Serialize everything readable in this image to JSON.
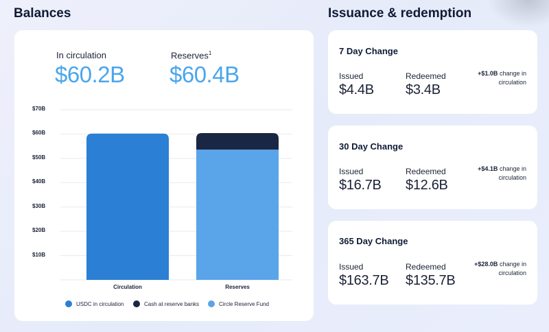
{
  "balances": {
    "title": "Balances",
    "in_circulation_label": "In circulation",
    "in_circulation_value": "$60.2B",
    "reserves_label": "Reserves",
    "reserves_footnote": "1",
    "reserves_value": "$60.4B"
  },
  "chart_data": {
    "type": "bar",
    "stacked": true,
    "categories": [
      "Circulation",
      "Reserves"
    ],
    "series": [
      {
        "name": "USDC in circulation",
        "color": "#2b7fd4",
        "values": [
          60.2,
          0
        ]
      },
      {
        "name": "Circle Reserve Fund",
        "color": "#5aa4ea",
        "values": [
          0,
          53.6
        ]
      },
      {
        "name": "Cash at reserve banks",
        "color": "#1a2744",
        "values": [
          0,
          6.8
        ]
      }
    ],
    "legend": [
      {
        "name": "USDC in circulation",
        "color": "#2b7fd4"
      },
      {
        "name": "Cash at reserve banks",
        "color": "#1a2744"
      },
      {
        "name": "Circle Reserve Fund",
        "color": "#5aa4ea"
      }
    ],
    "yticks": [
      "$10B",
      "$20B",
      "$30B",
      "$40B",
      "$50B",
      "$60B",
      "$70B"
    ],
    "ylim": [
      0,
      70
    ],
    "grid": true,
    "legend_position": "bottom",
    "title": "",
    "xlabel": "",
    "ylabel": ""
  },
  "issuance": {
    "title": "Issuance & redemption",
    "issued_label": "Issued",
    "redeemed_label": "Redeemed",
    "change_suffix": "change in",
    "change_suffix2": "circulation",
    "cards": [
      {
        "title": "7 Day Change",
        "issued": "$4.4B",
        "redeemed": "$3.4B",
        "change": "+$1.0B"
      },
      {
        "title": "30 Day Change",
        "issued": "$16.7B",
        "redeemed": "$12.6B",
        "change": "+$4.1B"
      },
      {
        "title": "365 Day Change",
        "issued": "$163.7B",
        "redeemed": "$135.7B",
        "change": "+$28.0B"
      }
    ]
  }
}
